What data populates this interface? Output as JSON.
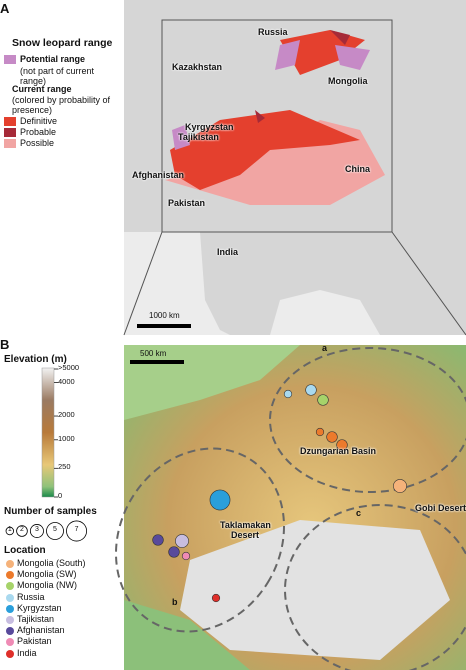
{
  "panel_a": {
    "label": "A",
    "legend": {
      "title": "Snow leopard range",
      "potential": "Potential range",
      "potential_note": "(not part of current range)",
      "current_title": "Current range",
      "current_note": "(colored by probability of presence)",
      "potential_color": "#c68ac6",
      "items": [
        {
          "label": "Definitive",
          "color": "#e4402e"
        },
        {
          "label": "Probable",
          "color": "#a62a38"
        },
        {
          "label": "Possible",
          "color": "#f1a5a3"
        }
      ]
    },
    "map_labels": [
      "Russia",
      "Kazakhstan",
      "Mongolia",
      "Kyrgyzstan",
      "Tajikistan",
      "Afghanistan",
      "Pakistan",
      "China",
      "India"
    ],
    "scale": "1000 km"
  },
  "panel_b": {
    "label": "B",
    "elevation": {
      "title": "Elevation (m)",
      "ticks": [
        {
          "value": 5000,
          "label": ">5000"
        },
        4000,
        2000,
        1000,
        250,
        0
      ]
    },
    "samples": {
      "title": "Number of samples",
      "sizes": [
        1,
        2,
        3,
        5,
        7
      ]
    },
    "location": {
      "title": "Location",
      "items": [
        {
          "name": "Mongolia (South)",
          "color": "#f5b27a"
        },
        {
          "name": "Mongolia (SW)",
          "color": "#ec7a2c"
        },
        {
          "name": "Mongolia (NW)",
          "color": "#a6d36a"
        },
        {
          "name": "Russia",
          "color": "#a9d9ef"
        },
        {
          "name": "Kyrgyzstan",
          "color": "#2a9fdb"
        },
        {
          "name": "Tajikistan",
          "color": "#c7bde0"
        },
        {
          "name": "Afghanistan",
          "color": "#584a9b"
        },
        {
          "name": "Pakistan",
          "color": "#ef8bb5"
        },
        {
          "name": "India",
          "color": "#df2f2a"
        }
      ]
    },
    "points": [
      {
        "location": 3,
        "n": 1
      },
      {
        "location": 3,
        "n": 2
      },
      {
        "location": 2,
        "n": 2
      },
      {
        "location": 1,
        "n": 1
      },
      {
        "location": 1,
        "n": 2
      },
      {
        "location": 1,
        "n": 2
      },
      {
        "location": 0,
        "n": 3
      },
      {
        "location": 4,
        "n": 7
      },
      {
        "location": 5,
        "n": 3
      },
      {
        "location": 6,
        "n": 2
      },
      {
        "location": 6,
        "n": 2
      },
      {
        "location": 7,
        "n": 1
      },
      {
        "location": 8,
        "n": 1
      }
    ],
    "map_labels": [
      "Dzungarian Basin",
      "Taklamakan Desert",
      "Gobi Desert"
    ],
    "region_labels": [
      "a",
      "b",
      "c"
    ],
    "scale": "500 km"
  }
}
